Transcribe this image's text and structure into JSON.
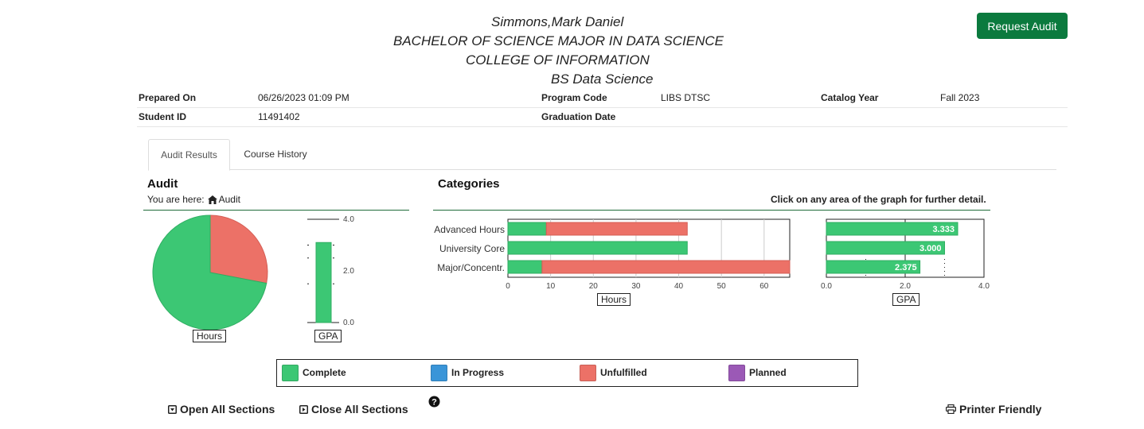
{
  "header": {
    "student_name": "Simmons,Mark Daniel",
    "degree": "BACHELOR OF SCIENCE MAJOR IN DATA SCIENCE",
    "college": "COLLEGE OF INFORMATION",
    "program": "BS Data Science",
    "request_audit_label": "Request Audit"
  },
  "info": {
    "prepared_on_label": "Prepared On",
    "prepared_on_value": "06/26/2023 01:09 PM",
    "program_code_label": "Program Code",
    "program_code_value": "LIBS DTSC",
    "catalog_year_label": "Catalog Year",
    "catalog_year_value": "Fall 2023",
    "student_id_label": "Student ID",
    "student_id_value": "11491402",
    "graduation_date_label": "Graduation Date"
  },
  "tabs": [
    {
      "label": "Audit Results",
      "active": true
    },
    {
      "label": "Course History",
      "active": false
    }
  ],
  "audit": {
    "title": "Audit",
    "breadcrumb_prefix": "You are here:",
    "breadcrumb_icon": "home-icon",
    "breadcrumb_current": "Audit",
    "pie_label": "Hours",
    "gpa_label": "GPA"
  },
  "categories": {
    "title": "Categories",
    "hint": "Click on any area of the graph for further detail.",
    "hours_label": "Hours",
    "gpa_label": "GPA"
  },
  "legend": [
    {
      "label": "Complete",
      "color": "#3cc774"
    },
    {
      "label": "In Progress",
      "color": "#3a95d8"
    },
    {
      "label": "Unfulfilled",
      "color": "#ec7167"
    },
    {
      "label": "Planned",
      "color": "#9b59b6"
    }
  ],
  "actions": {
    "open_all": "Open All Sections",
    "close_all": "Close All Sections",
    "help_icon": "question-circle-icon",
    "printer_friendly": "Printer Friendly"
  },
  "colors": {
    "complete": "#3cc774",
    "unfulfilled": "#ec7167",
    "accent": "#0b7a3e"
  },
  "chart_data": [
    {
      "type": "pie",
      "xlabel": "Hours",
      "series": [
        {
          "name": "Complete",
          "value": 72
        },
        {
          "name": "Unfulfilled",
          "value": 28
        }
      ]
    },
    {
      "type": "bar",
      "xlabel": "GPA",
      "ylim": [
        0,
        4
      ],
      "yticks": [
        "4.0",
        "2.0",
        "0.0"
      ],
      "values": [
        3.1
      ]
    },
    {
      "type": "bar",
      "orientation": "horizontal",
      "xlabel": "Hours",
      "categories": [
        "Advanced Hours",
        "University Core",
        "Major/Concentr."
      ],
      "xlim": [
        0,
        66
      ],
      "xticks": [
        0,
        10,
        20,
        30,
        40,
        50,
        60
      ],
      "series": [
        {
          "name": "Complete",
          "values": [
            9,
            42,
            8
          ]
        },
        {
          "name": "Unfulfilled",
          "values": [
            33,
            0,
            58
          ]
        }
      ]
    },
    {
      "type": "bar",
      "orientation": "horizontal",
      "xlabel": "GPA",
      "categories": [
        "Advanced Hours",
        "University Core",
        "Major/Concentr."
      ],
      "xlim": [
        0,
        4
      ],
      "xticks": [
        "0.0",
        "2.0",
        "4.0"
      ],
      "values": [
        3.333,
        3.0,
        2.375
      ],
      "data_labels": [
        "3.333",
        "3.000",
        "2.375"
      ]
    }
  ]
}
